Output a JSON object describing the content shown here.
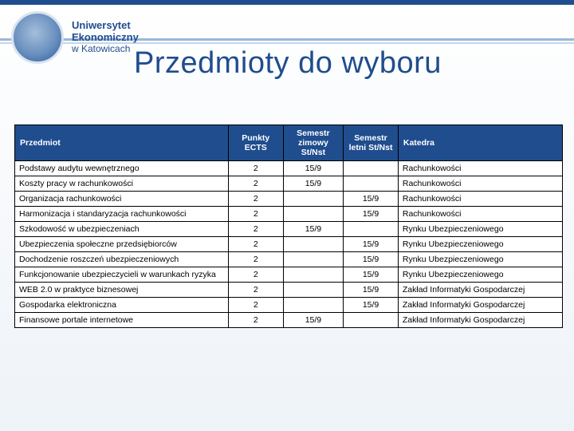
{
  "institution": {
    "line1": "Uniwersytet",
    "line2": "Ekonomiczny",
    "line3": "w Katowicach"
  },
  "title": "Przedmioty do wyboru",
  "table": {
    "type": "table",
    "background_color": "#ffffff",
    "header_bg": "#1f4d8e",
    "header_fg": "#ffffff",
    "border_color": "#000000",
    "font_size_pt": 10.5,
    "columns": [
      {
        "key": "subject",
        "label": "Przedmiot",
        "align": "left",
        "width_pct": 39
      },
      {
        "key": "ects",
        "label": "Punkty ECTS",
        "align": "center",
        "width_pct": 10
      },
      {
        "key": "winter",
        "label": "Semestr zimowy St/Nst",
        "align": "center",
        "width_pct": 11
      },
      {
        "key": "summer",
        "label": "Semestr letni St/Nst",
        "align": "center",
        "width_pct": 10
      },
      {
        "key": "dept",
        "label": "Katedra",
        "align": "left",
        "width_pct": 30
      }
    ],
    "rows": [
      {
        "subject": "Podstawy audytu wewnętrznego",
        "ects": "2",
        "winter": "15/9",
        "summer": "",
        "dept": "Rachunkowości"
      },
      {
        "subject": "Koszty pracy w rachunkowości",
        "ects": "2",
        "winter": "15/9",
        "summer": "",
        "dept": "Rachunkowości"
      },
      {
        "subject": "Organizacja rachunkowości",
        "ects": "2",
        "winter": "",
        "summer": "15/9",
        "dept": "Rachunkowości"
      },
      {
        "subject": "Harmonizacja i standaryzacja rachunkowości",
        "ects": "2",
        "winter": "",
        "summer": "15/9",
        "dept": "Rachunkowości"
      },
      {
        "subject": "Szkodowość w ubezpieczeniach",
        "ects": "2",
        "winter": "15/9",
        "summer": "",
        "dept": "Rynku Ubezpieczeniowego"
      },
      {
        "subject": "Ubezpieczenia społeczne przedsiębiorców",
        "ects": "2",
        "winter": "",
        "summer": "15/9",
        "dept": "Rynku Ubezpieczeniowego"
      },
      {
        "subject": "Dochodzenie roszczeń ubezpieczeniowych",
        "ects": "2",
        "winter": "",
        "summer": "15/9",
        "dept": "Rynku Ubezpieczeniowego"
      },
      {
        "subject": "Funkcjonowanie ubezpieczycieli w warunkach ryzyka",
        "ects": "2",
        "winter": "",
        "summer": "15/9",
        "dept": "Rynku Ubezpieczeniowego"
      },
      {
        "subject": "WEB 2.0 w praktyce biznesowej",
        "ects": "2",
        "winter": "",
        "summer": "15/9",
        "dept": "Zakład Informatyki Gospodarczej"
      },
      {
        "subject": "Gospodarka elektroniczna",
        "ects": "2",
        "winter": "",
        "summer": "15/9",
        "dept": "Zakład Informatyki Gospodarczej"
      },
      {
        "subject": "Finansowe portale internetowe",
        "ects": "2",
        "winter": "15/9",
        "summer": "",
        "dept": "Zakład Informatyki Gospodarczej"
      }
    ]
  }
}
